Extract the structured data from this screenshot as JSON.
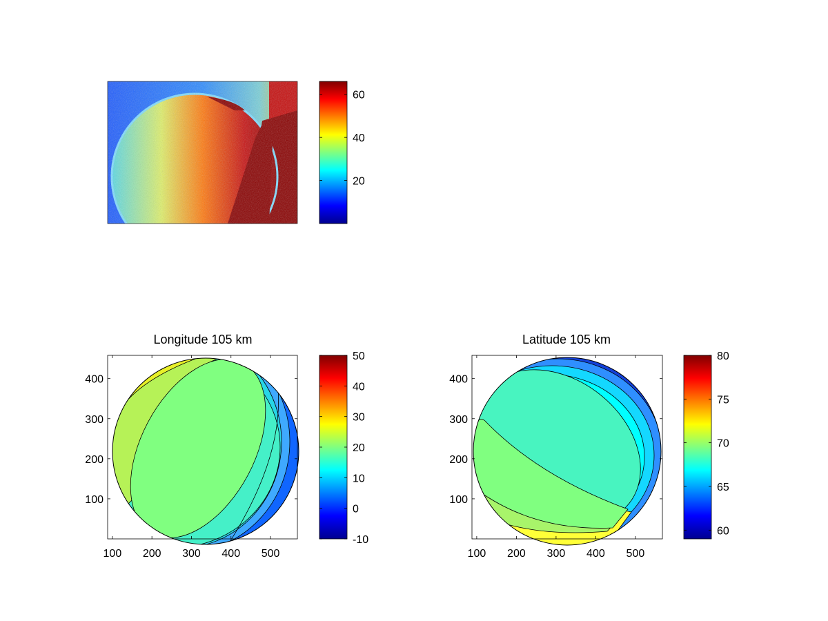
{
  "figure": {
    "panels": [
      {
        "id": "image",
        "title": ""
      },
      {
        "id": "longitude",
        "title": "Longitude 105 km"
      },
      {
        "id": "latitude",
        "title": "Latitude 105 km"
      }
    ]
  },
  "colors": {
    "jet": [
      "#00008f",
      "#0000ff",
      "#0080ff",
      "#00ffff",
      "#80ff80",
      "#ffff00",
      "#ff8000",
      "#ff0000",
      "#800000"
    ]
  },
  "chart_data": [
    {
      "type": "heatmap",
      "title": "",
      "description_visible": "camera image, sphere lit on right",
      "colorbar": {
        "ticks": [
          "20",
          "40",
          "60"
        ],
        "values": [
          20,
          40,
          60
        ],
        "range": [
          0,
          66
        ]
      }
    },
    {
      "type": "heatmap",
      "title": "Longitude 105 km",
      "xticks": [
        "100",
        "200",
        "300",
        "400",
        "500"
      ],
      "xtick_values": [
        100,
        200,
        300,
        400,
        500
      ],
      "xlim": [
        88,
        568
      ],
      "yticks": [
        "100",
        "200",
        "300",
        "400"
      ],
      "ytick_values": [
        100,
        200,
        300,
        400
      ],
      "ylim": [
        0,
        458
      ],
      "colorbar": {
        "ticks": [
          "-10",
          "0",
          "10",
          "20",
          "30",
          "40",
          "50"
        ],
        "values": [
          -10,
          0,
          10,
          20,
          30,
          40,
          50
        ],
        "range": [
          -10,
          50
        ]
      }
    },
    {
      "type": "heatmap",
      "title": "Latitude 105 km",
      "xticks": [
        "100",
        "200",
        "300",
        "400",
        "500"
      ],
      "xtick_values": [
        100,
        200,
        300,
        400,
        500
      ],
      "xlim": [
        88,
        568
      ],
      "yticks": [
        "100",
        "200",
        "300",
        "400"
      ],
      "ytick_values": [
        100,
        200,
        300,
        400
      ],
      "ylim": [
        0,
        458
      ],
      "colorbar": {
        "ticks": [
          "60",
          "65",
          "70",
          "75",
          "80"
        ],
        "values": [
          60,
          65,
          70,
          75,
          80
        ],
        "range": [
          59,
          80
        ]
      }
    }
  ]
}
